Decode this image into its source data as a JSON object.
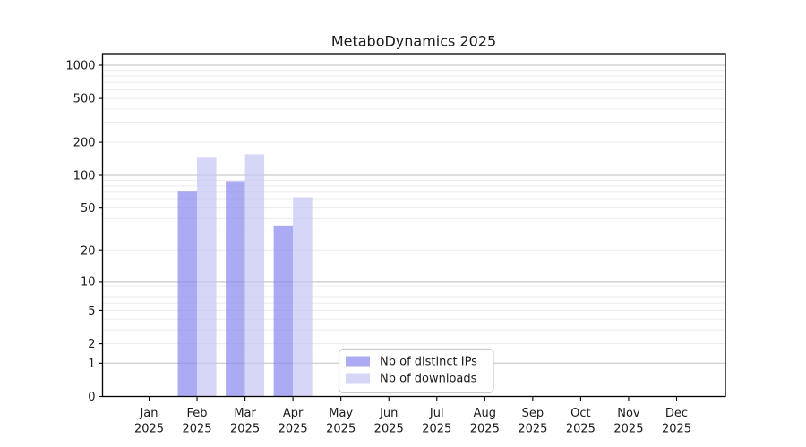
{
  "page": {
    "background": "#ffffff"
  },
  "chart_data": {
    "type": "bar",
    "title": "MetaboDynamics 2025",
    "x_categories": [
      "Jan",
      "Feb",
      "Mar",
      "Apr",
      "May",
      "Jun",
      "Jul",
      "Aug",
      "Sep",
      "Oct",
      "Nov",
      "Dec"
    ],
    "x_year": "2025",
    "y_scale": "log1p",
    "ylim": [
      0,
      1000
    ],
    "y_ticks": [
      0,
      1,
      2,
      5,
      10,
      20,
      50,
      100,
      200,
      500,
      1000
    ],
    "grid": {
      "on": true,
      "minor_color": "#ebebeb",
      "major_color": "#c9c9c9",
      "major_at": [
        1,
        10,
        100,
        1000
      ]
    },
    "frame_color": "#000000",
    "legend": {
      "position": "bottom-center",
      "border_color": "#c9c9c9",
      "background": "#ffffff"
    },
    "series": [
      {
        "name": "Nb of distinct IPs",
        "color": "rgba(136,136,240,0.7)",
        "values": [
          0,
          71,
          87,
          34,
          0,
          0,
          0,
          0,
          0,
          0,
          0,
          0
        ]
      },
      {
        "name": "Nb of downloads",
        "color": "rgba(196,196,244,0.7)",
        "values": [
          0,
          145,
          156,
          63,
          0,
          0,
          0,
          0,
          0,
          0,
          0,
          0
        ]
      }
    ]
  }
}
